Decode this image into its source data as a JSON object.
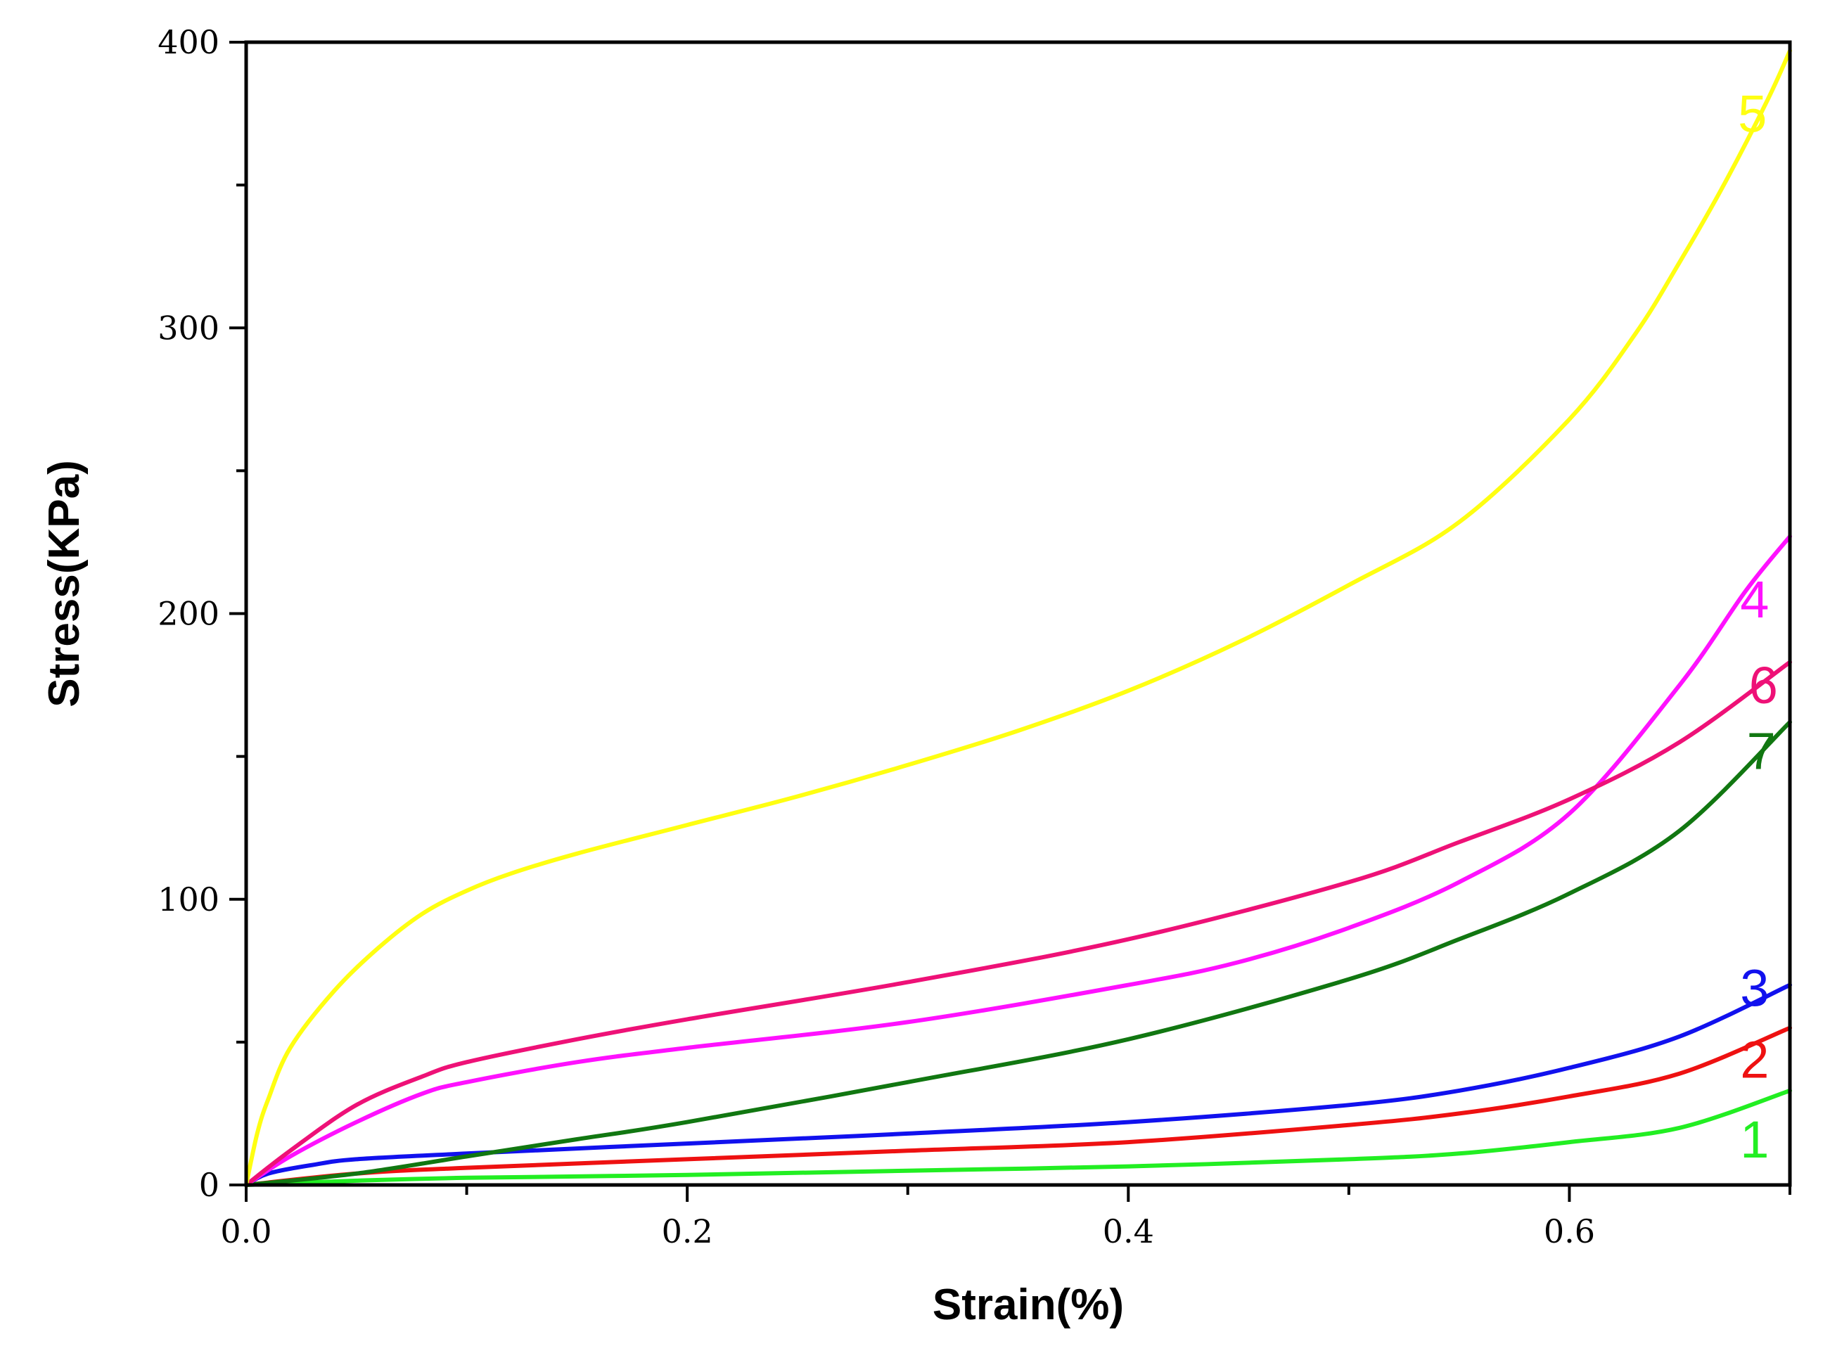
{
  "chart_data": {
    "type": "line",
    "title": "",
    "xlabel": "Strain(%)",
    "ylabel": "Stress(KPa)",
    "xlim": [
      0,
      0.7
    ],
    "ylim": [
      0,
      400
    ],
    "xticks": [
      {
        "value": 0.0,
        "label": "0.0"
      },
      {
        "value": 0.2,
        "label": "0.2"
      },
      {
        "value": 0.4,
        "label": "0.4"
      },
      {
        "value": 0.6,
        "label": "0.6"
      }
    ],
    "xminor": [
      0.1,
      0.3,
      0.5,
      0.7
    ],
    "yticks": [
      {
        "value": 0,
        "label": "0"
      },
      {
        "value": 100,
        "label": "100"
      },
      {
        "value": 200,
        "label": "200"
      },
      {
        "value": 300,
        "label": "300"
      },
      {
        "value": 400,
        "label": "400"
      }
    ],
    "yminor": [
      50,
      150,
      250,
      350
    ],
    "grid": false,
    "series": [
      {
        "name": "1",
        "color": "#22ee22",
        "x": [
          0,
          0.05,
          0.1,
          0.2,
          0.3,
          0.4,
          0.5,
          0.55,
          0.6,
          0.65,
          0.7
        ],
        "y": [
          0,
          1.5,
          2.5,
          3.5,
          5,
          6.5,
          9,
          11,
          15,
          20,
          33
        ],
        "label_at": [
          0.684,
          16
        ]
      },
      {
        "name": "2",
        "color": "#ee1111",
        "x": [
          0,
          0.05,
          0.1,
          0.2,
          0.3,
          0.4,
          0.5,
          0.55,
          0.6,
          0.65,
          0.7
        ],
        "y": [
          0,
          4,
          6,
          9,
          12,
          15,
          21,
          25,
          31,
          39,
          55
        ],
        "label_at": [
          0.684,
          44
        ]
      },
      {
        "name": "3",
        "color": "#1111ee",
        "x": [
          0,
          0.01,
          0.03,
          0.05,
          0.1,
          0.2,
          0.3,
          0.4,
          0.5,
          0.55,
          0.6,
          0.65,
          0.7
        ],
        "y": [
          0,
          4,
          7,
          9,
          11,
          14.5,
          18,
          22,
          28,
          33,
          41,
          52,
          70
        ],
        "label_at": [
          0.684,
          69
        ]
      },
      {
        "name": "4",
        "color": "#ff11ff",
        "x": [
          0,
          0.02,
          0.05,
          0.08,
          0.1,
          0.15,
          0.2,
          0.3,
          0.4,
          0.45,
          0.5,
          0.55,
          0.6,
          0.65,
          0.68,
          0.7
        ],
        "y": [
          0,
          10,
          22,
          32,
          36,
          43,
          48,
          57,
          70,
          78,
          90,
          106,
          130,
          175,
          208,
          227
        ],
        "label_at": [
          0.684,
          205
        ]
      },
      {
        "name": "5",
        "color": "#ffff11",
        "x": [
          0,
          0.005,
          0.01,
          0.02,
          0.04,
          0.06,
          0.08,
          0.1,
          0.12,
          0.15,
          0.2,
          0.25,
          0.3,
          0.35,
          0.4,
          0.45,
          0.5,
          0.55,
          0.6,
          0.63,
          0.65,
          0.67,
          0.69,
          0.7
        ],
        "y": [
          0,
          18,
          30,
          48,
          68,
          83,
          95,
          103,
          109,
          116,
          126,
          136,
          147,
          159,
          173,
          190,
          210,
          232,
          268,
          298,
          323,
          350,
          380,
          397
        ],
        "label_at": [
          0.683,
          375
        ]
      },
      {
        "name": "6",
        "color": "#ee1177",
        "x": [
          0,
          0.02,
          0.05,
          0.08,
          0.1,
          0.15,
          0.2,
          0.3,
          0.4,
          0.5,
          0.55,
          0.6,
          0.65,
          0.7
        ],
        "y": [
          0,
          12,
          28,
          38,
          43,
          51,
          58,
          71,
          86,
          106,
          120,
          135,
          155,
          183
        ],
        "label_at": [
          0.688,
          175
        ]
      },
      {
        "name": "7",
        "color": "#117711",
        "x": [
          0,
          0.05,
          0.1,
          0.15,
          0.2,
          0.3,
          0.4,
          0.5,
          0.55,
          0.6,
          0.65,
          0.7
        ],
        "y": [
          0,
          4,
          10,
          16,
          22,
          36,
          51,
          72,
          86,
          102,
          124,
          162
        ],
        "label_at": [
          0.687,
          152
        ]
      }
    ]
  }
}
